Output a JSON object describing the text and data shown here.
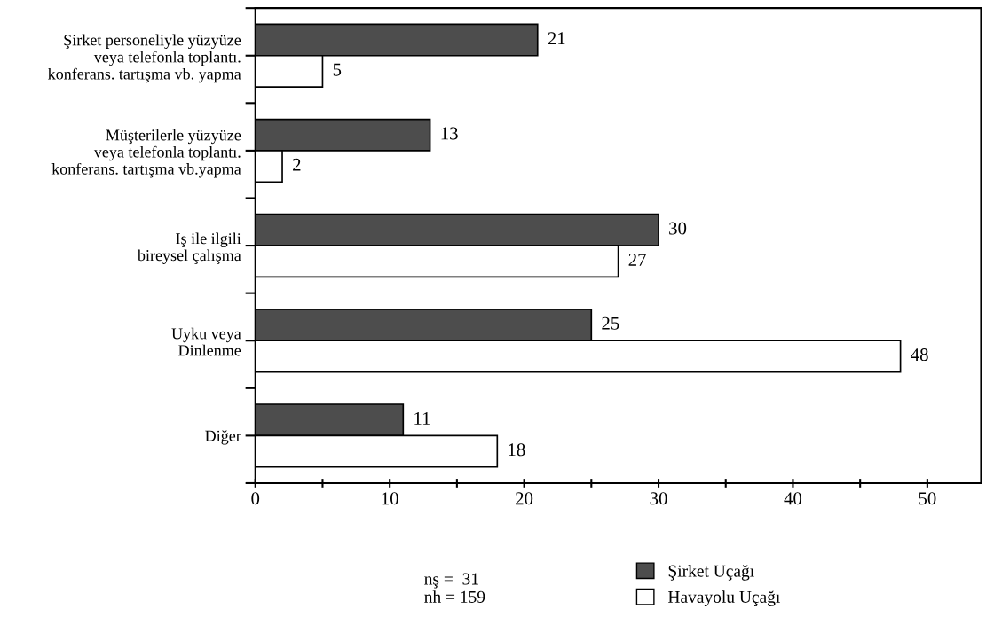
{
  "chart_data": {
    "type": "bar",
    "orientation": "horizontal",
    "categories": [
      "Şirket personeliyle yüzyüze\nveya telefonla toplantı.\nkonferans. tartışma vb. yapma",
      "Müşterilerle yüzyüze\nveya telefonla toplantı.\nkonferans. tartışma vb.yapma",
      "Iş ile ilgili\nbireysel çalışma",
      "Uyku veya\nDinlenme",
      "Diğer"
    ],
    "series": [
      {
        "name": "Şirket Uçağı",
        "color": "#4d4d4d",
        "values": [
          21,
          13,
          30,
          25,
          11
        ]
      },
      {
        "name": "Havayolu Uçağı",
        "color": "#ffffff",
        "values": [
          5,
          2,
          27,
          48,
          18
        ]
      }
    ],
    "xlim": [
      0,
      54
    ],
    "xticks": [
      0,
      {
        "value": 5,
        "label": null
      },
      10,
      {
        "value": 15,
        "label": null
      },
      20,
      {
        "value": 25,
        "label": null
      },
      30,
      {
        "value": 35,
        "label": null
      },
      40,
      {
        "value": 45,
        "label": null
      },
      50
    ],
    "data_labels": true,
    "grid": false,
    "legend": "bottom",
    "annotations": [
      "nş =  31\nnh = 159"
    ]
  }
}
